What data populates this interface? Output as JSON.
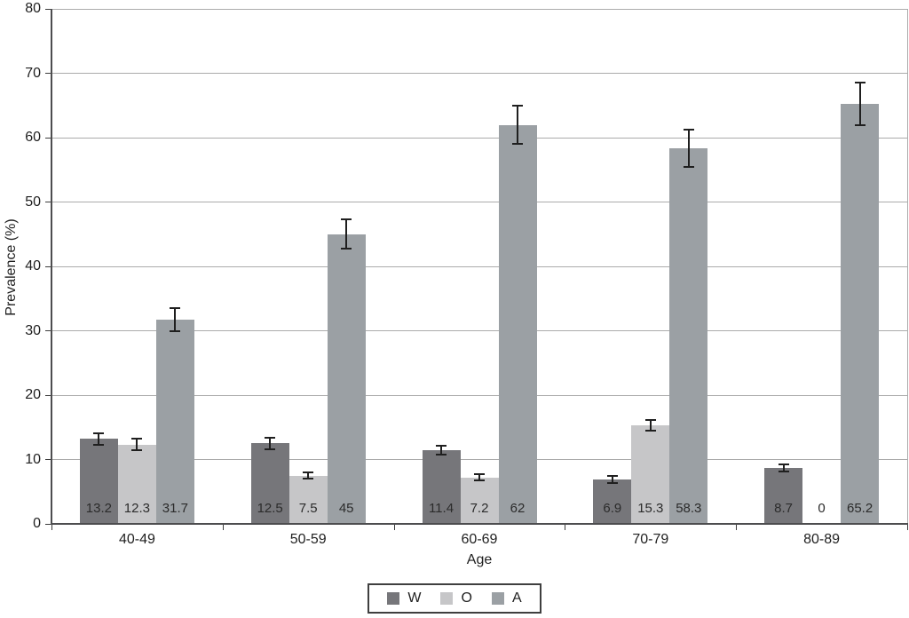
{
  "chart_data": {
    "type": "bar",
    "title": "",
    "xlabel": "Age",
    "ylabel": "Prevalence (%)",
    "ylim": [
      0,
      80
    ],
    "yticks": [
      0,
      10,
      20,
      30,
      40,
      50,
      60,
      70,
      80
    ],
    "grid": true,
    "legend_position": "bottom",
    "categories": [
      "40-49",
      "50-59",
      "60-69",
      "70-79",
      "80-89"
    ],
    "series": [
      {
        "name": "W",
        "color": "#76767a",
        "values": [
          13.2,
          12.5,
          11.4,
          6.9,
          8.7
        ],
        "value_labels": [
          "13.2",
          "12.5",
          "11.4",
          "6.9",
          "8.7"
        ],
        "errors": [
          0.9,
          0.9,
          0.7,
          0.5,
          0.5
        ]
      },
      {
        "name": "O",
        "color": "#c6c6c8",
        "values": [
          12.3,
          7.5,
          7.2,
          15.3,
          0
        ],
        "value_labels": [
          "12.3",
          "7.5",
          "7.2",
          "15.3",
          "0"
        ],
        "errors": [
          0.9,
          0.5,
          0.5,
          0.8,
          0
        ]
      },
      {
        "name": "A",
        "color": "#9ba0a4",
        "values": [
          31.7,
          45,
          62,
          58.3,
          65.2
        ],
        "value_labels": [
          "31.7",
          "45",
          "62",
          "58.3",
          "65.2"
        ],
        "errors": [
          1.8,
          2.3,
          3.0,
          2.9,
          3.3
        ]
      }
    ]
  },
  "colors": {
    "axis": "#4d4d4f",
    "gridline": "#ababab",
    "error_bar": "#1f1f1f",
    "value_label": "#2b2b2b",
    "background": "#ffffff"
  }
}
